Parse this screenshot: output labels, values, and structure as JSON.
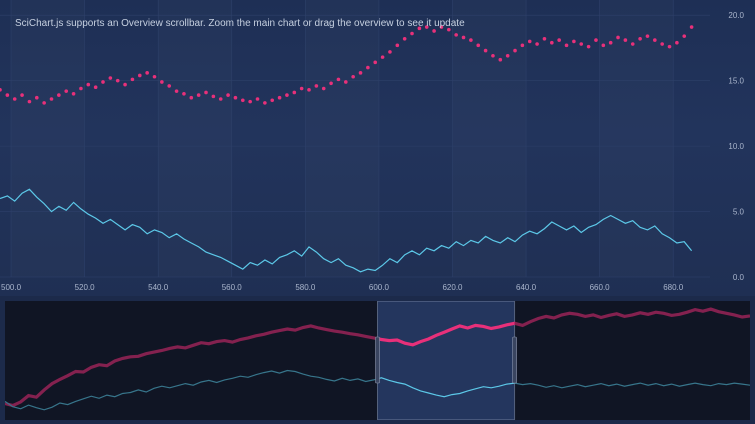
{
  "header": {
    "caption": "SciChart.js supports an Overview scrollbar. Zoom the main chart or drag the overview to see it update"
  },
  "colors": {
    "background": "#1c2a4a",
    "scatter": "#e8307a",
    "line": "#5cc8e8",
    "axis_label": "#a9b5cc",
    "overview_bg": "#141b2c",
    "overview_window": "#24365e"
  },
  "chart_data": {
    "type": "line",
    "title": "",
    "xlabel": "",
    "ylabel": "",
    "xlim": [
      497,
      690
    ],
    "ylim": [
      0,
      20.4
    ],
    "y_axis_side": "right",
    "x_ticks": [
      "500.0",
      "520.0",
      "540.0",
      "560.0",
      "580.0",
      "600.0",
      "620.0",
      "640.0",
      "660.0",
      "680.0"
    ],
    "x_tick_values": [
      500,
      520,
      540,
      560,
      580,
      600,
      620,
      640,
      660,
      680
    ],
    "y_ticks": [
      "0.0",
      "5.0",
      "10.0",
      "15.0",
      "20.0"
    ],
    "y_tick_values": [
      0,
      5,
      10,
      15,
      20
    ],
    "grid": true,
    "series": [
      {
        "type": "scatter",
        "color": "#e8307a",
        "x": [
          497,
          499,
          501,
          503,
          505,
          507,
          509,
          511,
          513,
          515,
          517,
          519,
          521,
          523,
          525,
          527,
          529,
          531,
          533,
          535,
          537,
          539,
          541,
          543,
          545,
          547,
          549,
          551,
          553,
          555,
          557,
          559,
          561,
          563,
          565,
          567,
          569,
          571,
          573,
          575,
          577,
          579,
          581,
          583,
          585,
          587,
          589,
          591,
          593,
          595,
          597,
          599,
          601,
          603,
          605,
          607,
          609,
          611,
          613,
          615,
          617,
          619,
          621,
          623,
          625,
          627,
          629,
          631,
          633,
          635,
          637,
          639,
          641,
          643,
          645,
          647,
          649,
          651,
          653,
          655,
          657,
          659,
          661,
          663,
          665,
          667,
          669,
          671,
          673,
          675,
          677,
          679,
          681,
          683,
          685
        ],
        "values": [
          14.3,
          13.9,
          13.6,
          13.9,
          13.4,
          13.7,
          13.3,
          13.6,
          13.9,
          14.2,
          14.0,
          14.4,
          14.7,
          14.5,
          14.9,
          15.2,
          15.0,
          14.7,
          15.1,
          15.4,
          15.6,
          15.3,
          14.9,
          14.6,
          14.2,
          14.0,
          13.7,
          13.9,
          14.1,
          13.8,
          13.6,
          13.9,
          13.7,
          13.5,
          13.4,
          13.6,
          13.3,
          13.5,
          13.7,
          13.9,
          14.1,
          14.4,
          14.3,
          14.6,
          14.4,
          14.8,
          15.1,
          14.9,
          15.3,
          15.6,
          16.0,
          16.4,
          16.8,
          17.2,
          17.7,
          18.2,
          18.6,
          19.0,
          19.1,
          18.8,
          19.1,
          18.9,
          18.5,
          18.3,
          18.1,
          17.7,
          17.3,
          16.9,
          16.6,
          16.9,
          17.3,
          17.7,
          18.0,
          17.8,
          18.2,
          17.9,
          18.1,
          17.7,
          18.0,
          17.8,
          17.6,
          18.1,
          17.7,
          17.9,
          18.3,
          18.1,
          17.8,
          18.2,
          18.4,
          18.1,
          17.8,
          17.6,
          17.9,
          18.4,
          19.1
        ]
      },
      {
        "type": "line",
        "color": "#5cc8e8",
        "x": [
          497,
          499,
          501,
          503,
          505,
          507,
          509,
          511,
          513,
          515,
          517,
          519,
          521,
          523,
          525,
          527,
          529,
          531,
          533,
          535,
          537,
          539,
          541,
          543,
          545,
          547,
          549,
          551,
          553,
          555,
          557,
          559,
          561,
          563,
          565,
          567,
          569,
          571,
          573,
          575,
          577,
          579,
          581,
          583,
          585,
          587,
          589,
          591,
          593,
          595,
          597,
          599,
          601,
          603,
          605,
          607,
          609,
          611,
          613,
          615,
          617,
          619,
          621,
          623,
          625,
          627,
          629,
          631,
          633,
          635,
          637,
          639,
          641,
          643,
          645,
          647,
          649,
          651,
          653,
          655,
          657,
          659,
          661,
          663,
          665,
          667,
          669,
          671,
          673,
          675,
          677,
          679,
          681,
          683,
          685
        ],
        "values": [
          6.0,
          6.2,
          5.8,
          6.4,
          6.7,
          6.1,
          5.6,
          5.0,
          5.4,
          5.1,
          5.7,
          5.2,
          4.8,
          4.5,
          4.1,
          4.4,
          4.0,
          3.6,
          4.0,
          3.8,
          3.3,
          3.6,
          3.4,
          3.0,
          3.3,
          2.9,
          2.6,
          2.3,
          1.9,
          1.7,
          1.5,
          1.2,
          0.9,
          0.6,
          1.1,
          0.9,
          1.3,
          1.0,
          1.5,
          1.7,
          2.0,
          1.6,
          2.3,
          1.9,
          1.4,
          1.1,
          1.4,
          0.9,
          0.7,
          0.4,
          0.6,
          0.5,
          0.9,
          1.4,
          1.1,
          1.7,
          2.0,
          1.7,
          2.2,
          2.0,
          2.4,
          2.2,
          2.7,
          2.4,
          2.8,
          2.6,
          3.1,
          2.8,
          2.6,
          3.0,
          2.7,
          3.2,
          3.5,
          3.3,
          3.7,
          4.2,
          3.9,
          3.6,
          3.9,
          3.4,
          3.8,
          4.0,
          4.4,
          4.7,
          4.4,
          4.1,
          4.3,
          3.8,
          3.6,
          3.9,
          3.3,
          3.0,
          2.6,
          2.7,
          2.0
        ]
      }
    ]
  },
  "overview_data": {
    "type": "line",
    "xlim": [
      0,
      100
    ],
    "ylim": [
      0,
      20.4
    ],
    "window_start_pct": 50,
    "window_end_pct": 68.4,
    "series": [
      {
        "color": "#e8307a",
        "values": [
          2,
          1.6,
          2.3,
          3.5,
          3.2,
          4.6,
          5.8,
          6.6,
          7.3,
          8.1,
          8.0,
          8.9,
          9.4,
          9.2,
          10.1,
          10.6,
          10.9,
          11.0,
          11.5,
          11.8,
          12.1,
          12.5,
          12.8,
          12.6,
          13.1,
          13.6,
          13.4,
          13.8,
          14.0,
          13.7,
          14.2,
          14.5,
          14.9,
          15.2,
          15.6,
          15.9,
          16.2,
          16.0,
          16.5,
          16.8,
          16.4,
          16.1,
          15.8,
          15.6,
          15.3,
          15.1,
          14.8,
          14.5,
          14.2,
          14.0,
          14.1,
          13.5,
          13.2,
          13.8,
          14.3,
          15.0,
          15.6,
          16.2,
          16.8,
          16.4,
          16.9,
          16.7,
          16.3,
          16.6,
          17.0,
          17.3,
          16.9,
          17.6,
          18.2,
          18.6,
          18.3,
          18.9,
          19.2,
          19.0,
          18.6,
          18.9,
          18.4,
          18.8,
          19.1,
          18.6,
          18.9,
          19.3,
          19.0,
          19.4,
          19.2,
          18.8,
          19.0,
          19.4,
          19.9,
          19.6,
          20.0,
          19.5,
          19.2,
          18.9,
          18.5,
          18.7
        ]
      },
      {
        "color": "#5cc8e8",
        "values": [
          2.4,
          1.4,
          1.0,
          1.7,
          1.2,
          0.8,
          1.3,
          2.1,
          1.8,
          2.4,
          2.9,
          3.4,
          3.0,
          3.6,
          3.3,
          3.9,
          4.1,
          4.6,
          4.2,
          4.9,
          5.3,
          5.0,
          5.4,
          5.8,
          5.5,
          6.1,
          6.4,
          6.0,
          6.5,
          6.8,
          7.2,
          7.0,
          7.5,
          7.9,
          8.2,
          7.8,
          8.3,
          8.1,
          7.6,
          7.2,
          7.0,
          6.6,
          6.3,
          6.8,
          6.4,
          6.7,
          6.2,
          6.5,
          6.9,
          6.4,
          6.0,
          5.7,
          5.0,
          4.4,
          4.0,
          3.6,
          3.3,
          3.7,
          3.9,
          4.4,
          4.8,
          5.2,
          5.0,
          5.3,
          5.7,
          5.9,
          5.6,
          5.8,
          5.5,
          5.1,
          5.4,
          5.0,
          5.3,
          5.6,
          5.2,
          5.5,
          5.8,
          5.4,
          5.7,
          5.3,
          5.6,
          5.9,
          5.5,
          5.8,
          5.4,
          5.7,
          5.3,
          5.6,
          5.9,
          5.6,
          5.4,
          5.8,
          5.6,
          5.9,
          5.7,
          5.5
        ]
      }
    ]
  }
}
